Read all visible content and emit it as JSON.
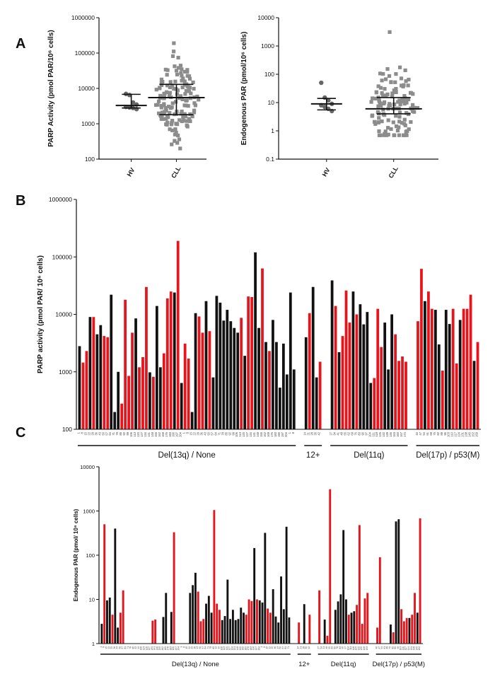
{
  "panels": {
    "a_label": "A",
    "b_label": "B",
    "c_label": "C"
  },
  "colors": {
    "black": "#111111",
    "red": "#e8141c",
    "grey": "#8c8c8c"
  },
  "chart_data": [
    {
      "id": "A1",
      "type": "scatter",
      "title": "",
      "ylabel": "PARP Activity (pmol PAR/10⁶ cells)",
      "yscale": "log",
      "ylim": [
        100,
        1000000
      ],
      "yticks": [
        {
          "v": 100,
          "t": "100"
        },
        {
          "v": 1000,
          "t": "1000"
        },
        {
          "v": 10000,
          "t": "10000"
        },
        {
          "v": 100000,
          "t": "100000"
        },
        {
          "v": 1000000,
          "t": "1000000"
        }
      ],
      "categories": [
        "HV",
        "CLL"
      ],
      "hv_points": [
        7000,
        6500,
        4000,
        3500,
        3000,
        2900,
        2800,
        2600
      ],
      "hv_summary": {
        "median": 3300,
        "low": 2800,
        "high": 6800
      },
      "cll_summary": {
        "median": 5500,
        "low": 1800,
        "high": 13000
      },
      "cll_points_range": [
        200,
        190000
      ]
    },
    {
      "id": "A2",
      "type": "scatter",
      "title": "",
      "ylabel": "Endogenous PAR (pmol/10⁶ cells)",
      "yscale": "log",
      "ylim": [
        0.1,
        10000
      ],
      "yticks": [
        {
          "v": 0.1,
          "t": "0.1"
        },
        {
          "v": 1,
          "t": "1"
        },
        {
          "v": 10,
          "t": "10"
        },
        {
          "v": 100,
          "t": "100"
        },
        {
          "v": 1000,
          "t": "1000"
        },
        {
          "v": 10000,
          "t": "10000"
        }
      ],
      "categories": [
        "HV",
        "CLL"
      ],
      "hv_points": [
        50,
        15,
        12,
        9,
        8,
        7,
        6,
        5
      ],
      "hv_summary": {
        "median": 9,
        "low": 5.5,
        "high": 14
      },
      "cll_summary": {
        "median": 6,
        "low": 4,
        "high": 15
      },
      "cll_points_range": [
        0.7,
        3100
      ]
    },
    {
      "id": "B",
      "type": "bar",
      "ylabel": "PARP activity (pmol PAR/ 10⁶ cells)",
      "yscale": "log",
      "ylim": [
        100,
        1000000
      ],
      "yticks": [
        {
          "v": 100,
          "t": "100"
        },
        {
          "v": 1000,
          "t": "1000"
        },
        {
          "v": 10000,
          "t": "10000"
        },
        {
          "v": 100000,
          "t": "100000"
        },
        {
          "v": 1000000,
          "t": "1000000"
        }
      ],
      "groups": [
        {
          "name": "Del(13q) / None",
          "values": [
            2800,
            1450,
            2300,
            9000,
            9000,
            4500,
            6500,
            4200,
            4000,
            22000,
            200,
            1000,
            280,
            18000,
            850,
            4800,
            8500,
            1200,
            1800,
            30000,
            980,
            820,
            14000,
            1200,
            2100,
            19000,
            25000,
            24000,
            190000,
            640,
            3100,
            1700,
            200,
            10500,
            9200,
            4800,
            17000,
            5100,
            800,
            21000,
            16000,
            7800,
            12000,
            7600,
            5800,
            4800,
            8700,
            1900,
            20500,
            20000,
            120000,
            5800,
            63000,
            3300,
            2300,
            8000,
            3300,
            530,
            3100,
            900,
            24000,
            1100
          ],
          "red": [
            0,
            1,
            1,
            0,
            1,
            0,
            0,
            1,
            1,
            0,
            0,
            0,
            1,
            1,
            1,
            1,
            0,
            1,
            1,
            1,
            0,
            1,
            0,
            0,
            1,
            1,
            1,
            0,
            1,
            0,
            1,
            1,
            0,
            0,
            1,
            1,
            0,
            1,
            0,
            0,
            0,
            0,
            0,
            0,
            0,
            0,
            1,
            0,
            1,
            1,
            0,
            0,
            1,
            0,
            1,
            0,
            0,
            0,
            0,
            0,
            0,
            0
          ]
        },
        {
          "name": "12+",
          "values": [
            4000,
            10500,
            30000,
            800,
            1500
          ],
          "red": [
            0,
            1,
            0,
            0,
            1
          ]
        },
        {
          "name": "Del(11q)",
          "values": [
            39000,
            14000,
            2200,
            4200,
            26000,
            7200,
            25000,
            10000,
            15000,
            6700,
            11000,
            640,
            780,
            12500,
            2700,
            7200,
            1100,
            10000,
            4500,
            1550,
            1850,
            1500
          ],
          "red": [
            0,
            1,
            0,
            1,
            1,
            1,
            0,
            1,
            0,
            0,
            0,
            0,
            1,
            1,
            1,
            0,
            0,
            0,
            1,
            1,
            1,
            1
          ]
        },
        {
          "name": "Del(17p) / p53(M)",
          "values": [
            7600,
            62000,
            17000,
            25000,
            12500,
            12000,
            3000,
            1050,
            12000,
            6800,
            12500,
            1400,
            8000,
            12500,
            12500,
            22000,
            1550,
            3300
          ],
          "red": [
            1,
            1,
            0,
            1,
            1,
            0,
            0,
            1,
            0,
            0,
            1,
            1,
            0,
            1,
            1,
            1,
            0,
            1
          ]
        }
      ],
      "tick_label_sample": [
        "11",
        "27",
        "4",
        "12",
        "24",
        "36",
        "43",
        "51",
        "8",
        "12",
        "16",
        "20"
      ]
    },
    {
      "id": "C",
      "type": "bar",
      "ylabel": "Endogenous PAR (pmol/ 10⁶ cells)",
      "yscale": "log",
      "ylim": [
        1,
        10000
      ],
      "yticks": [
        {
          "v": 1,
          "t": "1"
        },
        {
          "v": 10,
          "t": "10"
        },
        {
          "v": 100,
          "t": "100"
        },
        {
          "v": 1000,
          "t": "1000"
        },
        {
          "v": 10000,
          "t": "10000"
        }
      ],
      "groups": [
        {
          "name": "Del(13q) / None",
          "values": [
            2.8,
            500,
            9.5,
            11,
            4.5,
            400,
            2.3,
            5,
            16,
            1,
            1,
            1,
            1,
            1,
            1,
            1,
            1,
            1,
            1,
            3.3,
            3.5,
            1,
            1,
            4,
            14,
            1,
            5.2,
            330,
            1,
            1,
            1,
            1,
            1,
            14,
            21,
            40,
            15,
            3.2,
            3.6,
            8,
            12,
            5,
            1050,
            8,
            5.8,
            3.4,
            4.2,
            28,
            3.6,
            5.8,
            3.4,
            3.6,
            6.5,
            5,
            4.5,
            10,
            9.2,
            145,
            10,
            9.5,
            8.5,
            320,
            6.2,
            5,
            17,
            4.1,
            3,
            33,
            6,
            440,
            3.9
          ],
          "red": [
            0,
            1,
            0,
            0,
            1,
            0,
            0,
            1,
            1,
            0,
            0,
            0,
            0,
            0,
            0,
            0,
            0,
            0,
            0,
            1,
            1,
            0,
            0,
            0,
            0,
            0,
            0,
            1,
            0,
            0,
            0,
            0,
            0,
            0,
            0,
            0,
            1,
            1,
            1,
            0,
            0,
            0,
            1,
            1,
            1,
            0,
            0,
            0,
            0,
            0,
            0,
            0,
            0,
            0,
            1,
            1,
            1,
            0,
            1,
            0,
            0,
            0,
            1,
            1,
            0,
            0,
            0,
            0,
            0,
            0,
            0
          ]
        },
        {
          "name": "12+",
          "values": [
            3,
            1,
            7.8,
            1,
            4.5
          ],
          "red": [
            1,
            0,
            0,
            0,
            1
          ]
        },
        {
          "name": "Del(11q)",
          "values": [
            16,
            1,
            3.5,
            1.5,
            3100,
            1,
            5.8,
            9,
            13,
            370,
            10,
            4.5,
            5,
            5.4,
            7.5,
            480,
            2.8,
            10.5,
            14
          ],
          "red": [
            1,
            0,
            0,
            1,
            1,
            0,
            0,
            0,
            0,
            0,
            0,
            1,
            0,
            0,
            1,
            1,
            1,
            1,
            1
          ]
        },
        {
          "name": "Del(17p) / p53(M)",
          "values": [
            2.3,
            90,
            1,
            1,
            1,
            2.7,
            1.8,
            580,
            650,
            6,
            3.2,
            3.8,
            3.8,
            4.5,
            14,
            5,
            680
          ],
          "red": [
            1,
            1,
            0,
            0,
            0,
            0,
            1,
            0,
            0,
            1,
            1,
            1,
            0,
            1,
            1,
            0,
            1
          ]
        }
      ]
    }
  ]
}
